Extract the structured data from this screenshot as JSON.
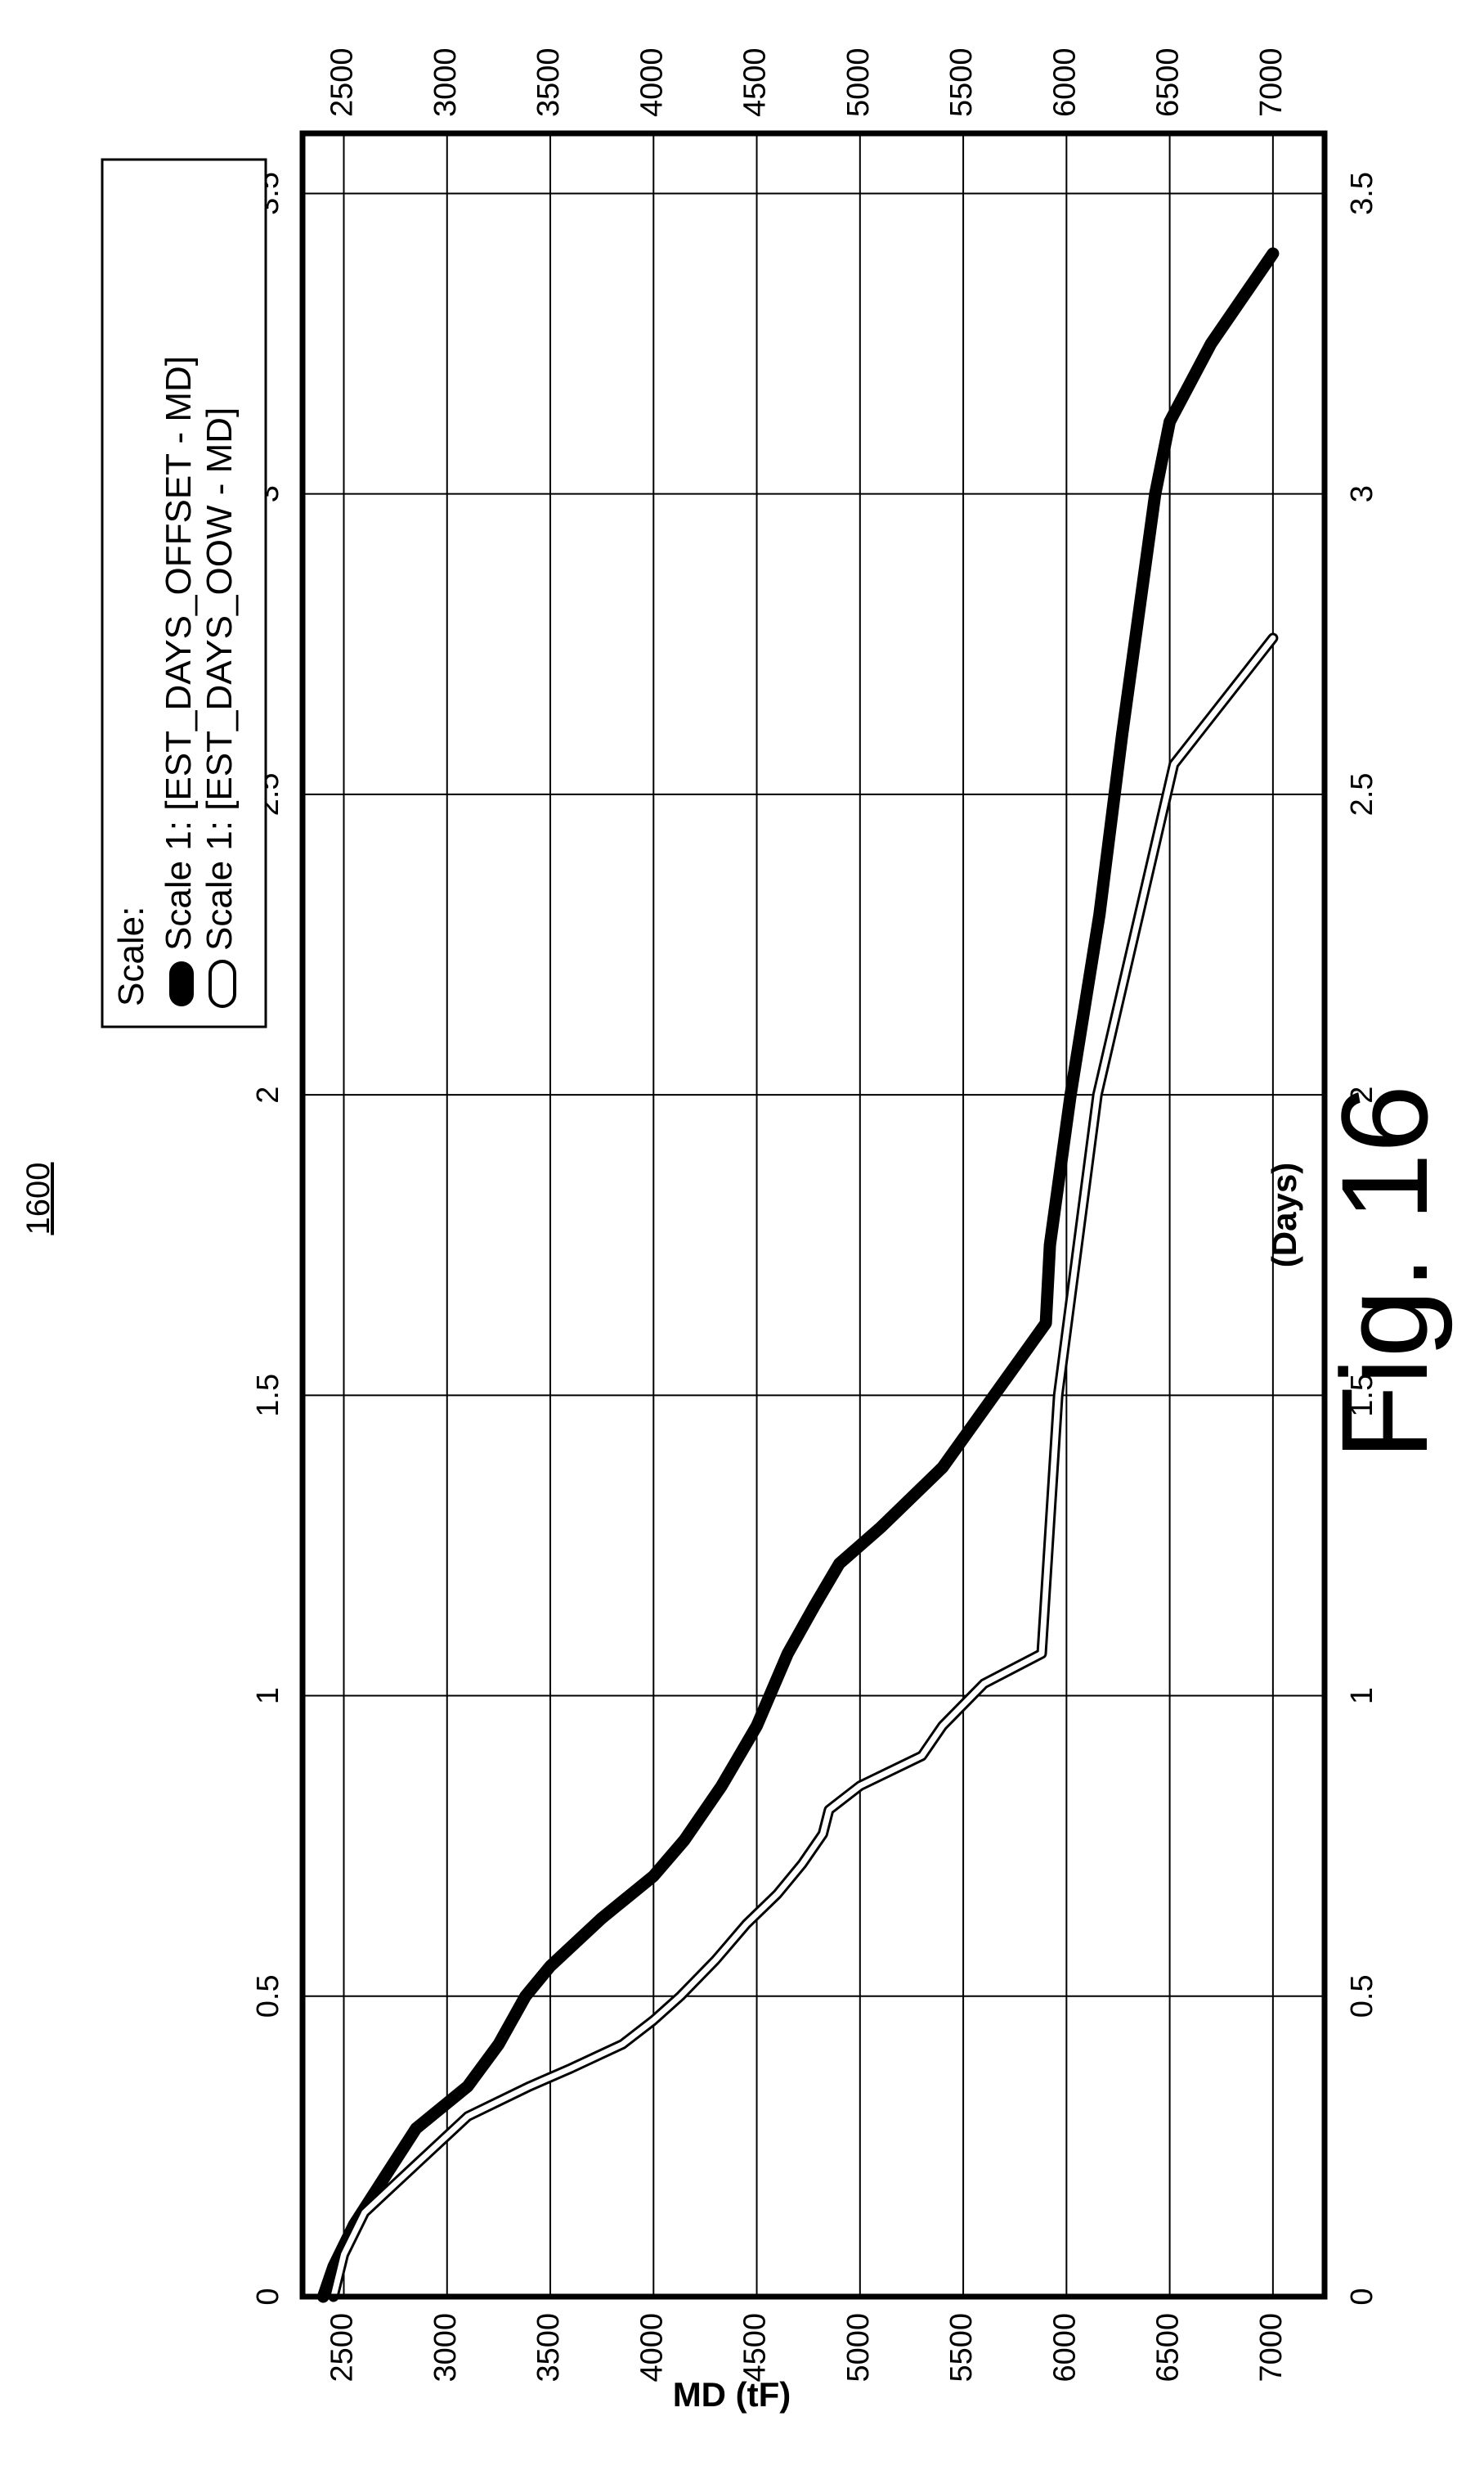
{
  "figure": {
    "reference_number": "1600",
    "caption": "Fig. 16"
  },
  "chart_data": {
    "type": "line",
    "orientation": "rotated 90 degrees counter-clockwise",
    "xlabel": "(Days)",
    "ylabel": "MD (tF)",
    "xlim": [
      0,
      3.6
    ],
    "ylim": [
      2300,
      7250
    ],
    "x_ticks": [
      "0",
      "0.5",
      "1",
      "1.5",
      "2",
      "2.5",
      "3",
      "3.5"
    ],
    "y_ticks": [
      "2500",
      "3000",
      "3500",
      "4000",
      "4500",
      "5000",
      "5500",
      "6000",
      "6500",
      "7000"
    ],
    "grid": true,
    "legend": {
      "position": "top-right",
      "title": "Scale:"
    },
    "series": [
      {
        "name": "Scale 1: [EST_DAYS_OFFSET - MD]",
        "style": "thick-black",
        "color": "#000000",
        "points": [
          [
            0.0,
            2400
          ],
          [
            0.05,
            2450
          ],
          [
            0.12,
            2550
          ],
          [
            0.2,
            2700
          ],
          [
            0.28,
            2850
          ],
          [
            0.35,
            3100
          ],
          [
            0.42,
            3250
          ],
          [
            0.5,
            3380
          ],
          [
            0.55,
            3500
          ],
          [
            0.63,
            3750
          ],
          [
            0.7,
            4000
          ],
          [
            0.76,
            4150
          ],
          [
            0.85,
            4330
          ],
          [
            0.95,
            4500
          ],
          [
            1.07,
            4650
          ],
          [
            1.15,
            4780
          ],
          [
            1.22,
            4900
          ],
          [
            1.28,
            5100
          ],
          [
            1.38,
            5400
          ],
          [
            1.5,
            5650
          ],
          [
            1.62,
            5900
          ],
          [
            1.75,
            5920
          ],
          [
            2.0,
            6020
          ],
          [
            2.3,
            6160
          ],
          [
            2.6,
            6270
          ],
          [
            2.8,
            6350
          ],
          [
            3.0,
            6430
          ],
          [
            3.12,
            6500
          ],
          [
            3.25,
            6700
          ],
          [
            3.4,
            7000
          ]
        ]
      },
      {
        "name": "Scale 1: [EST_DAYS_OOW - MD]",
        "style": "white-outline",
        "color": "#ffffff",
        "points": [
          [
            0.0,
            2450
          ],
          [
            0.07,
            2500
          ],
          [
            0.14,
            2600
          ],
          [
            0.22,
            2850
          ],
          [
            0.3,
            3100
          ],
          [
            0.35,
            3400
          ],
          [
            0.38,
            3600
          ],
          [
            0.42,
            3850
          ],
          [
            0.46,
            4000
          ],
          [
            0.5,
            4130
          ],
          [
            0.56,
            4300
          ],
          [
            0.62,
            4450
          ],
          [
            0.67,
            4600
          ],
          [
            0.72,
            4720
          ],
          [
            0.77,
            4820
          ],
          [
            0.81,
            4850
          ],
          [
            0.85,
            5000
          ],
          [
            0.9,
            5300
          ],
          [
            0.95,
            5400
          ],
          [
            1.02,
            5600
          ],
          [
            1.07,
            5880
          ],
          [
            1.5,
            5960
          ],
          [
            2.0,
            6150
          ],
          [
            2.55,
            6520
          ],
          [
            2.76,
            7000
          ]
        ]
      }
    ]
  }
}
